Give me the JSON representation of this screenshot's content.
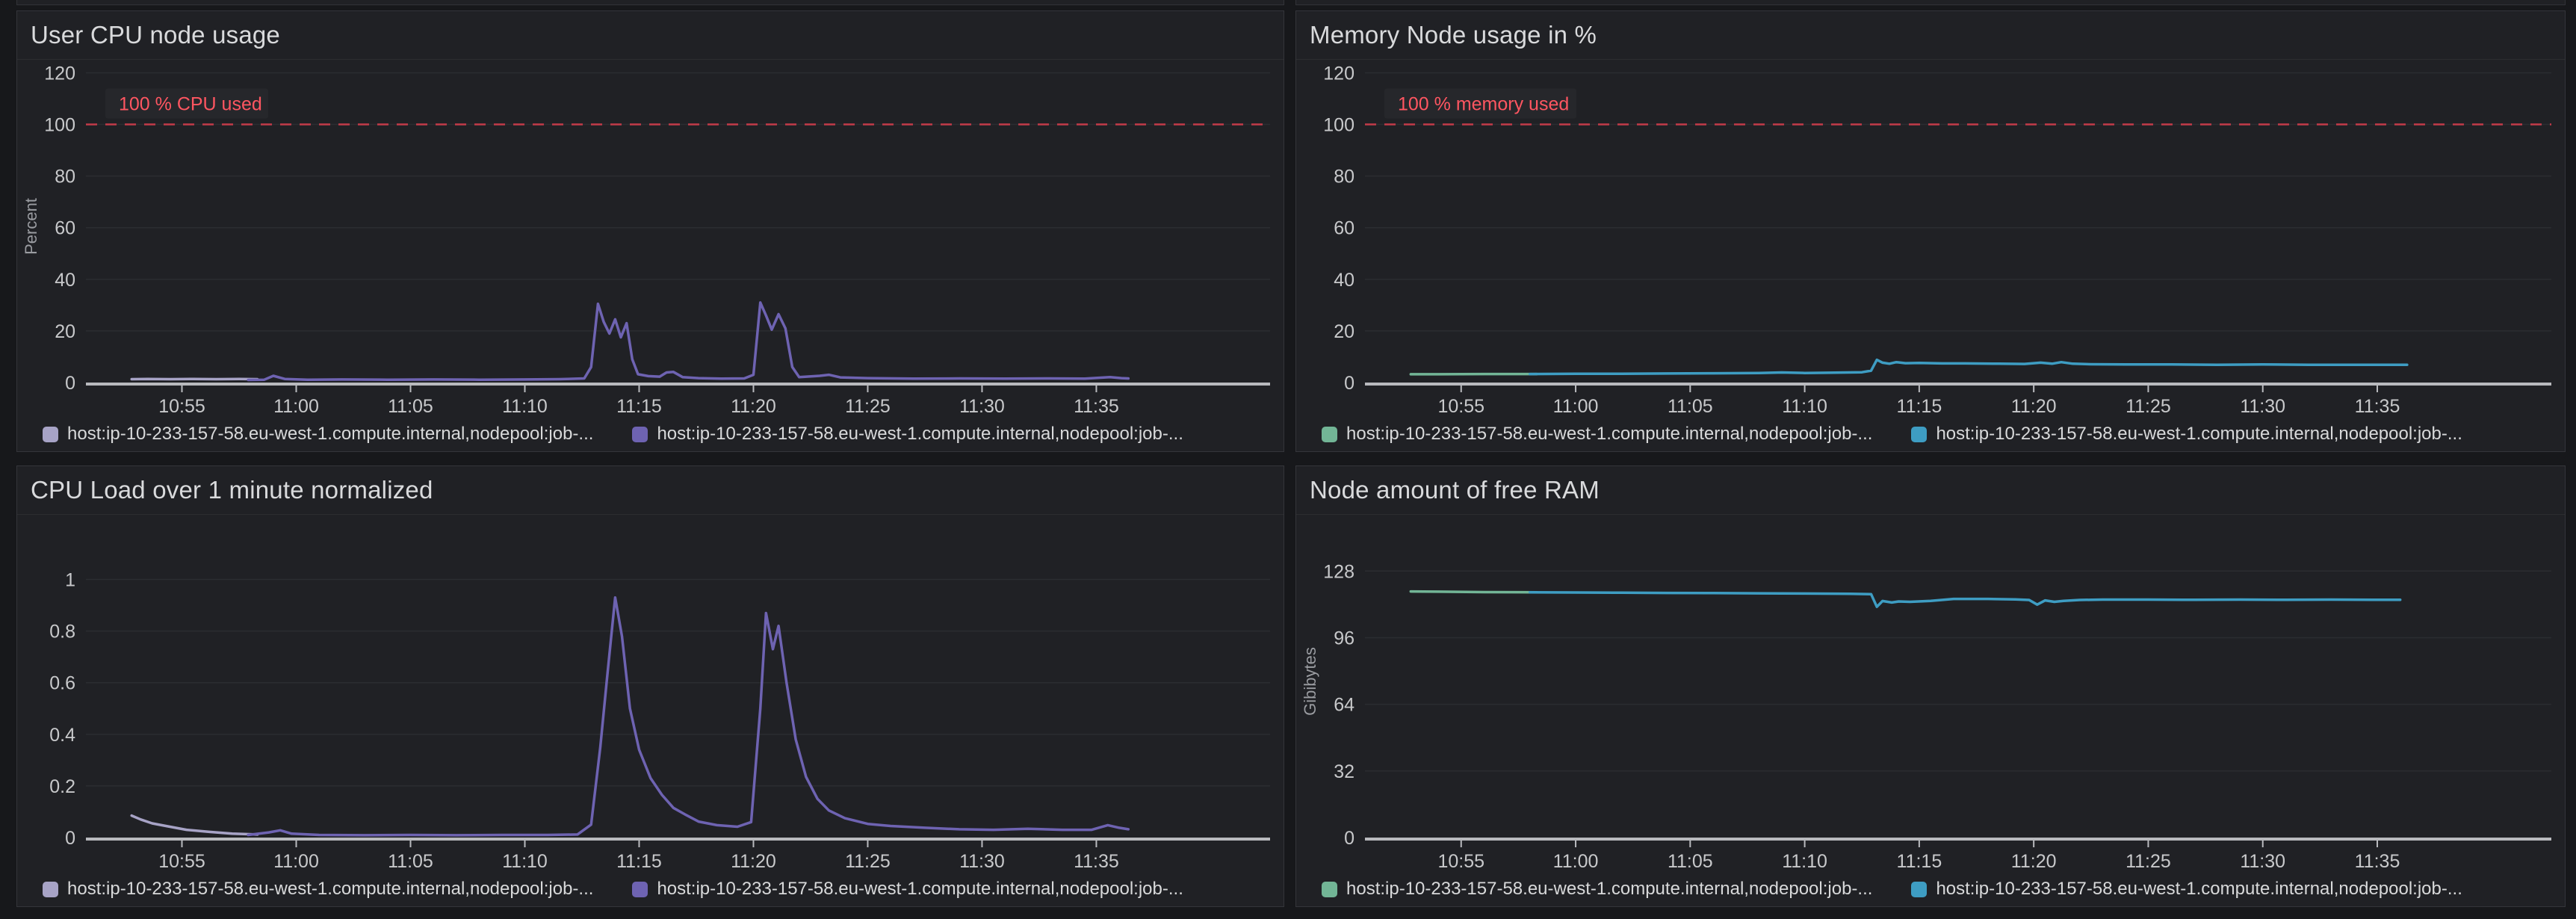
{
  "colors": {
    "page_bg": "#17181b",
    "panel_bg": "#202125",
    "panel_border": "#34353a",
    "title_text": "#d9dadc",
    "tick_label": "#c8c9cb",
    "axis_title": "#9a9ca1",
    "gridline": "#2b2d31",
    "axis_line": "#b9babe",
    "threshold_line": "#c23b49",
    "threshold_text": "#ff5661",
    "threshold_label_bg": "#26272b",
    "legend_text": "#d8d9da",
    "series_lavender": "#a7a3c6",
    "series_purple": "#6e63b2",
    "series_green": "#72b596",
    "series_blue": "#3e9dc3"
  },
  "x_axis": {
    "domain_minutes": [
      650.8,
      702.6
    ],
    "ticks": [
      {
        "t": 655,
        "label": "10:55"
      },
      {
        "t": 660,
        "label": "11:00"
      },
      {
        "t": 665,
        "label": "11:05"
      },
      {
        "t": 670,
        "label": "11:10"
      },
      {
        "t": 675,
        "label": "11:15"
      },
      {
        "t": 680,
        "label": "11:20"
      },
      {
        "t": 685,
        "label": "11:25"
      },
      {
        "t": 690,
        "label": "11:30"
      },
      {
        "t": 695,
        "label": "11:35"
      }
    ]
  },
  "chart_data": [
    {
      "type": "line",
      "title": "User CPU node usage",
      "ylabel": "Percent",
      "ylim": [
        0,
        121
      ],
      "grid": true,
      "legend_position": "bottom",
      "yticks": [
        {
          "v": 0,
          "label": "0"
        },
        {
          "v": 20,
          "label": "20"
        },
        {
          "v": 40,
          "label": "40"
        },
        {
          "v": 60,
          "label": "60"
        },
        {
          "v": 80,
          "label": "80"
        },
        {
          "v": 100,
          "label": "100"
        },
        {
          "v": 120,
          "label": "120"
        }
      ],
      "threshold": {
        "value": 100,
        "label": "100 % CPU used"
      },
      "series": [
        {
          "name": "host:ip-10-233-157-58.eu-west-1.compute.internal,nodepool:job-...",
          "color": "#a7a3c6",
          "points": [
            [
              652.8,
              1.3
            ],
            [
              653.5,
              1.4
            ],
            [
              654.5,
              1.3
            ],
            [
              655.5,
              1.4
            ],
            [
              656.5,
              1.3
            ],
            [
              657.5,
              1.4
            ],
            [
              658.3,
              1.3
            ]
          ]
        },
        {
          "name": "host:ip-10-233-157-58.eu-west-1.compute.internal,nodepool:job-...",
          "color": "#6e63b2",
          "points": [
            [
              657.9,
              1.0
            ],
            [
              658.6,
              1.1
            ],
            [
              659.0,
              2.6
            ],
            [
              659.5,
              1.4
            ],
            [
              660.5,
              1.1
            ],
            [
              662,
              1.2
            ],
            [
              664,
              1.1
            ],
            [
              666,
              1.2
            ],
            [
              668,
              1.1
            ],
            [
              670,
              1.2
            ],
            [
              671.5,
              1.3
            ],
            [
              672.6,
              1.6
            ],
            [
              672.9,
              6.0
            ],
            [
              673.2,
              30.5
            ],
            [
              673.45,
              23.5
            ],
            [
              673.7,
              19.0
            ],
            [
              673.95,
              24.5
            ],
            [
              674.2,
              17.5
            ],
            [
              674.45,
              23.0
            ],
            [
              674.7,
              9.0
            ],
            [
              674.95,
              3.2
            ],
            [
              675.4,
              2.5
            ],
            [
              675.9,
              2.3
            ],
            [
              676.2,
              3.9
            ],
            [
              676.5,
              4.1
            ],
            [
              676.9,
              2.1
            ],
            [
              677.6,
              1.7
            ],
            [
              678.6,
              1.5
            ],
            [
              679.6,
              1.6
            ],
            [
              680.0,
              3.0
            ],
            [
              680.3,
              31.0
            ],
            [
              680.55,
              26.0
            ],
            [
              680.8,
              20.5
            ],
            [
              681.1,
              26.5
            ],
            [
              681.4,
              21.0
            ],
            [
              681.7,
              6.0
            ],
            [
              682.0,
              2.1
            ],
            [
              682.9,
              2.6
            ],
            [
              683.3,
              3.0
            ],
            [
              683.8,
              2.0
            ],
            [
              685,
              1.7
            ],
            [
              687,
              1.5
            ],
            [
              689,
              1.6
            ],
            [
              691,
              1.5
            ],
            [
              693,
              1.6
            ],
            [
              694.5,
              1.5
            ],
            [
              695.6,
              2.1
            ],
            [
              696.1,
              1.7
            ],
            [
              696.4,
              1.6
            ]
          ]
        }
      ],
      "legend": [
        {
          "label": "host:ip-10-233-157-58.eu-west-1.compute.internal,nodepool:job-...",
          "color": "#a7a3c6"
        },
        {
          "label": "host:ip-10-233-157-58.eu-west-1.compute.internal,nodepool:job-...",
          "color": "#6e63b2"
        }
      ]
    },
    {
      "type": "line",
      "title": "Memory Node usage in %",
      "ylabel": "",
      "ylim": [
        0,
        121
      ],
      "grid": true,
      "legend_position": "bottom",
      "yticks": [
        {
          "v": 0,
          "label": "0"
        },
        {
          "v": 20,
          "label": "20"
        },
        {
          "v": 40,
          "label": "40"
        },
        {
          "v": 60,
          "label": "60"
        },
        {
          "v": 80,
          "label": "80"
        },
        {
          "v": 100,
          "label": "100"
        },
        {
          "v": 120,
          "label": "120"
        }
      ],
      "threshold": {
        "value": 100,
        "label": "100 % memory used"
      },
      "series": [
        {
          "name": "host:ip-10-233-157-58.eu-west-1.compute.internal,nodepool:job-...",
          "color": "#72b596",
          "points": [
            [
              652.8,
              3.2
            ],
            [
              654,
              3.2
            ],
            [
              656,
              3.3
            ],
            [
              658.3,
              3.3
            ]
          ]
        },
        {
          "name": "host:ip-10-233-157-58.eu-west-1.compute.internal,nodepool:job-...",
          "color": "#3e9dc3",
          "points": [
            [
              658.0,
              3.3
            ],
            [
              660,
              3.4
            ],
            [
              662,
              3.4
            ],
            [
              664,
              3.5
            ],
            [
              666,
              3.6
            ],
            [
              668,
              3.7
            ],
            [
              669,
              3.9
            ],
            [
              670,
              3.7
            ],
            [
              671,
              3.8
            ],
            [
              672.5,
              4.0
            ],
            [
              672.9,
              4.6
            ],
            [
              673.15,
              8.8
            ],
            [
              673.4,
              7.7
            ],
            [
              673.7,
              7.3
            ],
            [
              674.0,
              7.9
            ],
            [
              674.4,
              7.5
            ],
            [
              675,
              7.6
            ],
            [
              676,
              7.4
            ],
            [
              677,
              7.4
            ],
            [
              678.5,
              7.3
            ],
            [
              679.6,
              7.2
            ],
            [
              680.3,
              7.7
            ],
            [
              680.8,
              7.3
            ],
            [
              681.2,
              7.9
            ],
            [
              681.7,
              7.3
            ],
            [
              682.5,
              7.1
            ],
            [
              684,
              7.0
            ],
            [
              686,
              7.0
            ],
            [
              688,
              6.9
            ],
            [
              690,
              7.0
            ],
            [
              692,
              6.9
            ],
            [
              694,
              6.9
            ],
            [
              696.3,
              6.9
            ]
          ]
        }
      ],
      "legend": [
        {
          "label": "host:ip-10-233-157-58.eu-west-1.compute.internal,nodepool:job-...",
          "color": "#72b596"
        },
        {
          "label": "host:ip-10-233-157-58.eu-west-1.compute.internal,nodepool:job-...",
          "color": "#3e9dc3"
        }
      ]
    },
    {
      "type": "line",
      "title": "CPU Load over 1 minute normalized",
      "ylabel": "",
      "ylim": [
        0,
        1.21
      ],
      "grid": true,
      "legend_position": "bottom",
      "yticks": [
        {
          "v": 0,
          "label": "0"
        },
        {
          "v": 0.2,
          "label": "0.2"
        },
        {
          "v": 0.4,
          "label": "0.4"
        },
        {
          "v": 0.6,
          "label": "0.6"
        },
        {
          "v": 0.8,
          "label": "0.8"
        },
        {
          "v": 1,
          "label": "1"
        }
      ],
      "threshold": null,
      "series": [
        {
          "name": "host:ip-10-233-157-58.eu-west-1.compute.internal,nodepool:job-...",
          "color": "#a7a3c6",
          "points": [
            [
              652.8,
              0.085
            ],
            [
              653.2,
              0.07
            ],
            [
              653.7,
              0.055
            ],
            [
              654.3,
              0.045
            ],
            [
              655.2,
              0.03
            ],
            [
              656.2,
              0.022
            ],
            [
              657.2,
              0.015
            ],
            [
              658.3,
              0.012
            ]
          ]
        },
        {
          "name": "host:ip-10-233-157-58.eu-west-1.compute.internal,nodepool:job-...",
          "color": "#6e63b2",
          "points": [
            [
              657.9,
              0.01
            ],
            [
              658.8,
              0.02
            ],
            [
              659.3,
              0.028
            ],
            [
              659.8,
              0.015
            ],
            [
              661,
              0.01
            ],
            [
              663,
              0.009
            ],
            [
              665,
              0.01
            ],
            [
              667,
              0.009
            ],
            [
              669,
              0.01
            ],
            [
              671,
              0.01
            ],
            [
              672.3,
              0.012
            ],
            [
              672.9,
              0.05
            ],
            [
              673.3,
              0.35
            ],
            [
              673.6,
              0.62
            ],
            [
              673.95,
              0.93
            ],
            [
              674.25,
              0.78
            ],
            [
              674.6,
              0.5
            ],
            [
              675.0,
              0.34
            ],
            [
              675.5,
              0.23
            ],
            [
              676.0,
              0.165
            ],
            [
              676.5,
              0.115
            ],
            [
              677.0,
              0.09
            ],
            [
              677.6,
              0.062
            ],
            [
              678.4,
              0.048
            ],
            [
              679.3,
              0.042
            ],
            [
              679.9,
              0.06
            ],
            [
              680.3,
              0.5
            ],
            [
              680.55,
              0.87
            ],
            [
              680.85,
              0.73
            ],
            [
              681.1,
              0.82
            ],
            [
              681.45,
              0.6
            ],
            [
              681.85,
              0.38
            ],
            [
              682.3,
              0.235
            ],
            [
              682.8,
              0.15
            ],
            [
              683.3,
              0.105
            ],
            [
              684.0,
              0.075
            ],
            [
              685,
              0.053
            ],
            [
              686,
              0.045
            ],
            [
              687.5,
              0.038
            ],
            [
              689,
              0.032
            ],
            [
              690.5,
              0.03
            ],
            [
              692,
              0.034
            ],
            [
              693.5,
              0.03
            ],
            [
              694.8,
              0.03
            ],
            [
              695.5,
              0.048
            ],
            [
              696.0,
              0.038
            ],
            [
              696.4,
              0.032
            ]
          ]
        }
      ],
      "legend": [
        {
          "label": "host:ip-10-233-157-58.eu-west-1.compute.internal,nodepool:job-...",
          "color": "#a7a3c6"
        },
        {
          "label": "host:ip-10-233-157-58.eu-west-1.compute.internal,nodepool:job-...",
          "color": "#6e63b2"
        }
      ]
    },
    {
      "type": "line",
      "title": "Node amount of free RAM",
      "ylabel": "Gibibytes",
      "ylim": [
        0,
        150
      ],
      "grid": true,
      "legend_position": "bottom",
      "yticks": [
        {
          "v": 0,
          "label": "0"
        },
        {
          "v": 32,
          "label": "32"
        },
        {
          "v": 64,
          "label": "64"
        },
        {
          "v": 96,
          "label": "96"
        },
        {
          "v": 128,
          "label": "128"
        }
      ],
      "threshold": null,
      "series": [
        {
          "name": "host:ip-10-233-157-58.eu-west-1.compute.internal,nodepool:job-...",
          "color": "#72b596",
          "points": [
            [
              652.8,
              118.2
            ],
            [
              654,
              118.1
            ],
            [
              656,
              117.9
            ],
            [
              658.3,
              117.8
            ]
          ]
        },
        {
          "name": "host:ip-10-233-157-58.eu-west-1.compute.internal,nodepool:job-...",
          "color": "#3e9dc3",
          "points": [
            [
              658.0,
              117.8
            ],
            [
              660,
              117.7
            ],
            [
              662,
              117.6
            ],
            [
              664,
              117.5
            ],
            [
              666,
              117.4
            ],
            [
              668,
              117.3
            ],
            [
              670,
              117.2
            ],
            [
              672,
              117.1
            ],
            [
              672.9,
              116.9
            ],
            [
              673.15,
              110.8
            ],
            [
              673.4,
              113.6
            ],
            [
              673.8,
              112.9
            ],
            [
              674.1,
              113.4
            ],
            [
              674.6,
              113.2
            ],
            [
              675.5,
              113.7
            ],
            [
              676.5,
              114.6
            ],
            [
              678,
              114.6
            ],
            [
              679.2,
              114.4
            ],
            [
              679.8,
              114.1
            ],
            [
              680.15,
              111.9
            ],
            [
              680.5,
              113.9
            ],
            [
              680.9,
              113.2
            ],
            [
              681.3,
              113.7
            ],
            [
              682,
              114.1
            ],
            [
              683,
              114.3
            ],
            [
              685,
              114.3
            ],
            [
              687,
              114.2
            ],
            [
              689,
              114.3
            ],
            [
              691,
              114.2
            ],
            [
              693,
              114.3
            ],
            [
              695,
              114.2
            ],
            [
              696,
              114.2
            ]
          ]
        }
      ],
      "legend": [
        {
          "label": "host:ip-10-233-157-58.eu-west-1.compute.internal,nodepool:job-...",
          "color": "#72b596"
        },
        {
          "label": "host:ip-10-233-157-58.eu-west-1.compute.internal,nodepool:job-...",
          "color": "#3e9dc3"
        }
      ]
    }
  ]
}
